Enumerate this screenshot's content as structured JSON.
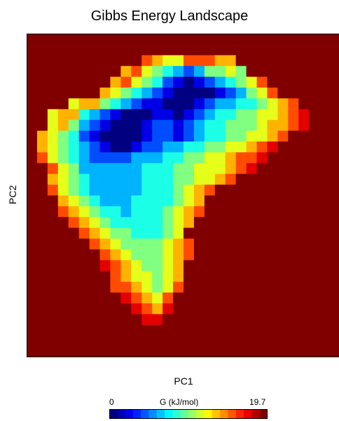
{
  "chart_data": {
    "type": "heatmap",
    "title": "Gibbs Energy Landscape",
    "xlabel": "PC1",
    "ylabel": "PC2",
    "colorbar": {
      "label": "G (kJ/mol)",
      "min_label": "0",
      "max_label": "19.7",
      "min": 0,
      "max": 19.7,
      "colormap": "jet"
    },
    "grid": false,
    "legend": "none",
    "grid_size": {
      "cols": 30,
      "rows": 30
    },
    "z": [
      "..............................",
      "..............................",
      "..........a876688877..........",
      ".........786543235565.........",
      "........786542101234568.......",
      ".......76543210000123568......",
      "....6775432110001233445678....",
      "..6774321000110123445566789...",
      "..6753210001221234455567789...",
      ".765421000012212344556678.....",
      ".76543210012233445566789......",
      ".8654322223334455667889.......",
      "..86533333344455666789........",
      "..765433333444556678..........",
      "..8654333334445678............",
      "...76543334444567.............",
      "...87654434445678.............",
      "....876544444567..............",
      ".....8765544456...............",
      "......8765555678..............",
      ".......876555678..............",
      ".......98765567...............",
      "........8766567...............",
      "........8876568...............",
      ".........98768................",
      "..........9879................",
      "...........99.................",
      "..............................",
      "..............................",
      ".............................."
    ]
  }
}
